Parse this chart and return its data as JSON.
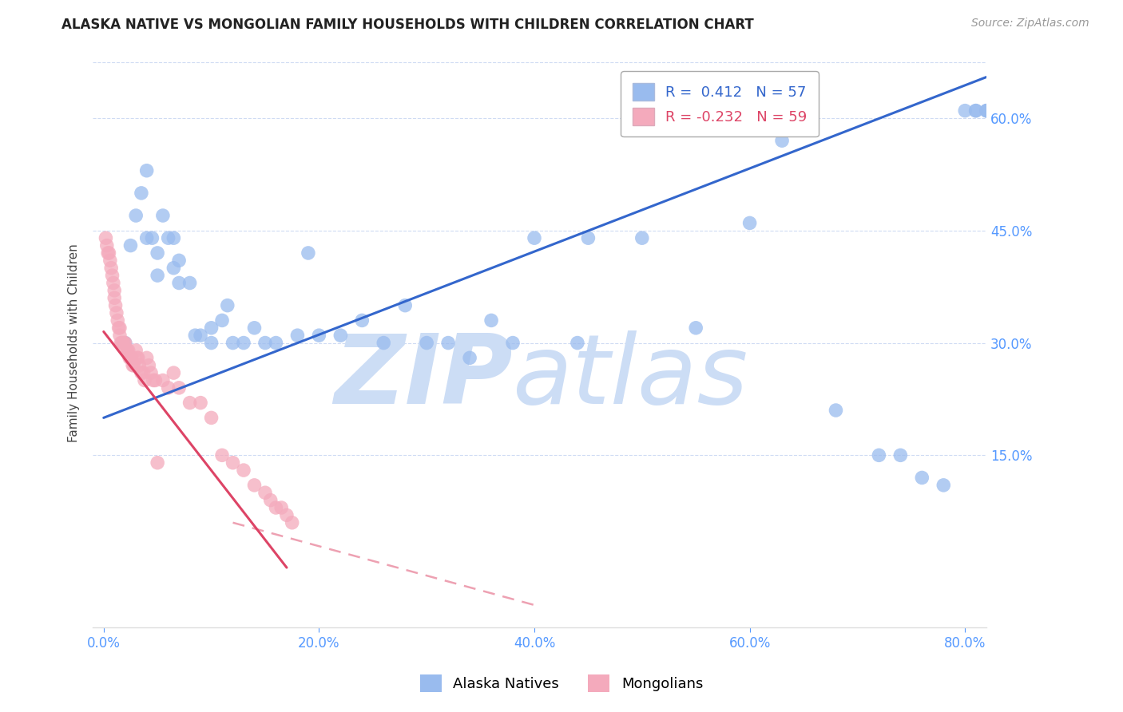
{
  "title": "ALASKA NATIVE VS MONGOLIAN FAMILY HOUSEHOLDS WITH CHILDREN CORRELATION CHART",
  "source": "Source: ZipAtlas.com",
  "ylabel": "Family Households with Children",
  "xlabel_ticks": [
    "0.0%",
    "20.0%",
    "40.0%",
    "60.0%",
    "80.0%"
  ],
  "ylabel_ticks": [
    "15.0%",
    "30.0%",
    "45.0%",
    "60.0%"
  ],
  "ytick_color": "#5599ff",
  "xtick_color": "#5599ff",
  "blue_R": 0.412,
  "blue_N": 57,
  "pink_R": -0.232,
  "pink_N": 59,
  "blue_color": "#99bbee",
  "pink_color": "#f4aabc",
  "blue_line_color": "#3366cc",
  "pink_line_color": "#dd4466",
  "watermark_zip": "ZIP",
  "watermark_atlas": "atlas",
  "watermark_color_zip": "#ccddf5",
  "watermark_color_atlas": "#ccddf5",
  "background_color": "#ffffff",
  "title_fontsize": 12,
  "source_fontsize": 10,
  "legend_fontsize": 13,
  "axis_label_fontsize": 11,
  "tick_fontsize": 12,
  "xlim": [
    -0.01,
    0.82
  ],
  "ylim": [
    -0.08,
    0.68
  ],
  "blue_scatter_x": [
    0.02,
    0.025,
    0.03,
    0.035,
    0.04,
    0.04,
    0.045,
    0.05,
    0.05,
    0.055,
    0.06,
    0.065,
    0.065,
    0.07,
    0.07,
    0.08,
    0.085,
    0.09,
    0.1,
    0.1,
    0.11,
    0.115,
    0.12,
    0.13,
    0.14,
    0.15,
    0.16,
    0.18,
    0.19,
    0.2,
    0.22,
    0.24,
    0.26,
    0.28,
    0.3,
    0.32,
    0.34,
    0.36,
    0.38,
    0.4,
    0.44,
    0.45,
    0.5,
    0.55,
    0.6,
    0.63,
    0.68,
    0.72,
    0.74,
    0.76,
    0.78,
    0.8,
    0.81,
    0.81,
    0.82,
    0.82,
    0.82
  ],
  "blue_scatter_y": [
    0.3,
    0.43,
    0.47,
    0.5,
    0.53,
    0.44,
    0.44,
    0.42,
    0.39,
    0.47,
    0.44,
    0.44,
    0.4,
    0.41,
    0.38,
    0.38,
    0.31,
    0.31,
    0.3,
    0.32,
    0.33,
    0.35,
    0.3,
    0.3,
    0.32,
    0.3,
    0.3,
    0.31,
    0.42,
    0.31,
    0.31,
    0.33,
    0.3,
    0.35,
    0.3,
    0.3,
    0.28,
    0.33,
    0.3,
    0.44,
    0.3,
    0.44,
    0.44,
    0.32,
    0.46,
    0.57,
    0.21,
    0.15,
    0.15,
    0.12,
    0.11,
    0.61,
    0.61,
    0.61,
    0.61,
    0.61,
    0.61
  ],
  "pink_scatter_x": [
    0.002,
    0.003,
    0.004,
    0.005,
    0.006,
    0.007,
    0.008,
    0.009,
    0.01,
    0.01,
    0.011,
    0.012,
    0.013,
    0.014,
    0.015,
    0.015,
    0.016,
    0.017,
    0.018,
    0.019,
    0.02,
    0.021,
    0.022,
    0.023,
    0.024,
    0.025,
    0.026,
    0.027,
    0.028,
    0.03,
    0.031,
    0.032,
    0.033,
    0.035,
    0.037,
    0.038,
    0.04,
    0.042,
    0.044,
    0.046,
    0.048,
    0.05,
    0.055,
    0.06,
    0.065,
    0.07,
    0.08,
    0.09,
    0.1,
    0.11,
    0.12,
    0.13,
    0.14,
    0.15,
    0.155,
    0.16,
    0.165,
    0.17,
    0.175
  ],
  "pink_scatter_y": [
    0.44,
    0.43,
    0.42,
    0.42,
    0.41,
    0.4,
    0.39,
    0.38,
    0.37,
    0.36,
    0.35,
    0.34,
    0.33,
    0.32,
    0.32,
    0.31,
    0.3,
    0.3,
    0.3,
    0.3,
    0.3,
    0.29,
    0.29,
    0.29,
    0.28,
    0.28,
    0.28,
    0.27,
    0.27,
    0.29,
    0.28,
    0.28,
    0.27,
    0.26,
    0.26,
    0.25,
    0.28,
    0.27,
    0.26,
    0.25,
    0.25,
    0.14,
    0.25,
    0.24,
    0.26,
    0.24,
    0.22,
    0.22,
    0.2,
    0.15,
    0.14,
    0.13,
    0.11,
    0.1,
    0.09,
    0.08,
    0.08,
    0.07,
    0.06
  ],
  "blue_line_x0": 0.0,
  "blue_line_y0": 0.2,
  "blue_line_x1": 0.82,
  "blue_line_y1": 0.655,
  "pink_line_x0": 0.0,
  "pink_line_y0": 0.315,
  "pink_line_x1": 0.4,
  "pink_line_y1": -0.05
}
